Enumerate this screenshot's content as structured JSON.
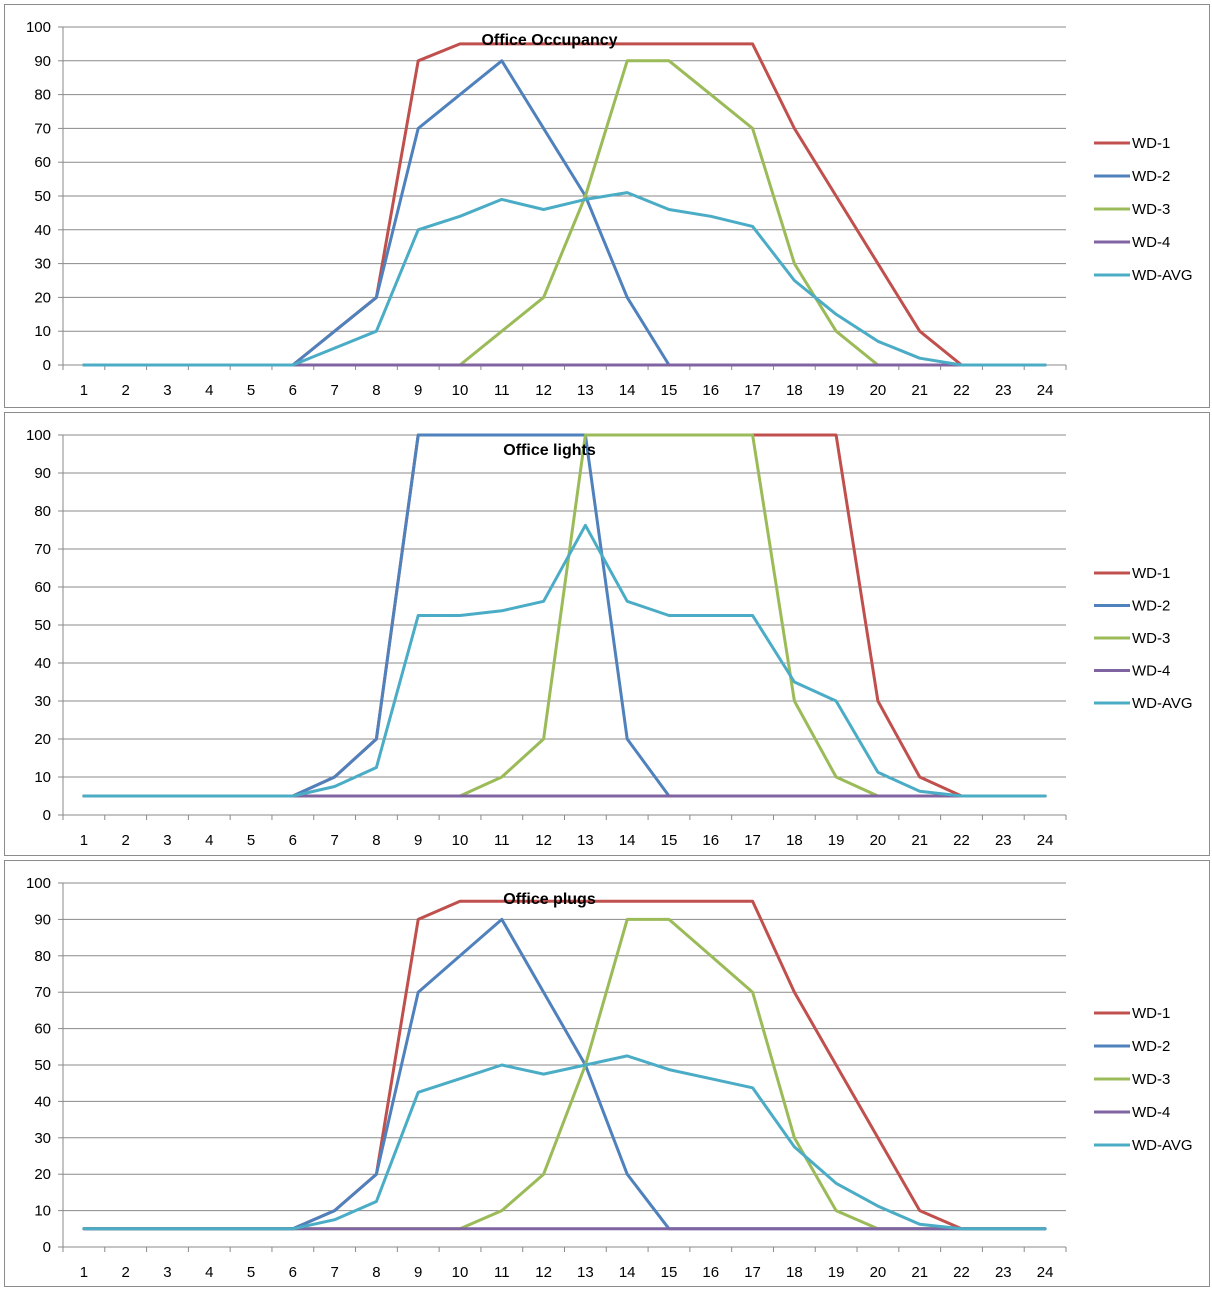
{
  "colors": {
    "WD-1": "#c0504d",
    "WD-2": "#4f81bd",
    "WD-3": "#9bbb59",
    "WD-4": "#8064a2",
    "WD-AVG": "#4bacc6"
  },
  "chart_data": [
    {
      "type": "line",
      "title": "Office Occupancy",
      "xlabel": "",
      "ylabel": "",
      "x": [
        1,
        2,
        3,
        4,
        5,
        6,
        7,
        8,
        9,
        10,
        11,
        12,
        13,
        14,
        15,
        16,
        17,
        18,
        19,
        20,
        21,
        22,
        23,
        24
      ],
      "y_ticks": [
        0,
        10,
        20,
        30,
        40,
        50,
        60,
        70,
        80,
        90,
        100
      ],
      "ylim": [
        0,
        100
      ],
      "grid": true,
      "legend_position": "right",
      "series": [
        {
          "name": "WD-1",
          "values": [
            0,
            0,
            0,
            0,
            0,
            0,
            10,
            20,
            90,
            95,
            95,
            95,
            95,
            95,
            95,
            95,
            95,
            70,
            50,
            30,
            10,
            0,
            0,
            0
          ]
        },
        {
          "name": "WD-2",
          "values": [
            0,
            0,
            0,
            0,
            0,
            0,
            10,
            20,
            70,
            80,
            90,
            70,
            50,
            20,
            0,
            0,
            0,
            0,
            0,
            0,
            0,
            0,
            0,
            0
          ]
        },
        {
          "name": "WD-3",
          "values": [
            0,
            0,
            0,
            0,
            0,
            0,
            0,
            0,
            0,
            0,
            10,
            20,
            50,
            90,
            90,
            80,
            70,
            30,
            10,
            0,
            0,
            0,
            0,
            0
          ]
        },
        {
          "name": "WD-4",
          "values": [
            0,
            0,
            0,
            0,
            0,
            0,
            0,
            0,
            0,
            0,
            0,
            0,
            0,
            0,
            0,
            0,
            0,
            0,
            0,
            0,
            0,
            0,
            0,
            0
          ]
        },
        {
          "name": "WD-AVG",
          "values": [
            0,
            0,
            0,
            0,
            0,
            0,
            5,
            10,
            40,
            44,
            49,
            46,
            49,
            51,
            46,
            44,
            41,
            25,
            15,
            7,
            2,
            0,
            0,
            0
          ]
        }
      ]
    },
    {
      "type": "line",
      "title": "Office lights",
      "xlabel": "",
      "ylabel": "",
      "x": [
        1,
        2,
        3,
        4,
        5,
        6,
        7,
        8,
        9,
        10,
        11,
        12,
        13,
        14,
        15,
        16,
        17,
        18,
        19,
        20,
        21,
        22,
        23,
        24
      ],
      "y_ticks": [
        0,
        10,
        20,
        30,
        40,
        50,
        60,
        70,
        80,
        90,
        100
      ],
      "ylim": [
        0,
        100
      ],
      "grid": true,
      "legend_position": "right",
      "series": [
        {
          "name": "WD-1",
          "values": [
            5,
            5,
            5,
            5,
            5,
            5,
            10,
            20,
            100,
            100,
            100,
            100,
            100,
            100,
            100,
            100,
            100,
            100,
            100,
            30,
            10,
            5,
            5,
            5
          ]
        },
        {
          "name": "WD-2",
          "values": [
            5,
            5,
            5,
            5,
            5,
            5,
            10,
            20,
            100,
            100,
            100,
            100,
            100,
            20,
            5,
            5,
            5,
            5,
            5,
            5,
            5,
            5,
            5,
            5
          ]
        },
        {
          "name": "WD-3",
          "values": [
            5,
            5,
            5,
            5,
            5,
            5,
            5,
            5,
            5,
            5,
            10,
            20,
            100,
            100,
            100,
            100,
            100,
            30,
            10,
            5,
            5,
            5,
            5,
            5
          ]
        },
        {
          "name": "WD-4",
          "values": [
            5,
            5,
            5,
            5,
            5,
            5,
            5,
            5,
            5,
            5,
            5,
            5,
            5,
            5,
            5,
            5,
            5,
            5,
            5,
            5,
            5,
            5,
            5,
            5
          ]
        },
        {
          "name": "WD-AVG",
          "values": [
            5,
            5,
            5,
            5,
            5,
            5,
            7.5,
            12.5,
            52.5,
            52.5,
            53.75,
            56.25,
            76.25,
            56.25,
            52.5,
            52.5,
            52.5,
            35,
            30,
            11.25,
            6.25,
            5,
            5,
            5
          ]
        }
      ]
    },
    {
      "type": "line",
      "title": "Office plugs",
      "xlabel": "",
      "ylabel": "",
      "x": [
        1,
        2,
        3,
        4,
        5,
        6,
        7,
        8,
        9,
        10,
        11,
        12,
        13,
        14,
        15,
        16,
        17,
        18,
        19,
        20,
        21,
        22,
        23,
        24
      ],
      "y_ticks": [
        0,
        10,
        20,
        30,
        40,
        50,
        60,
        70,
        80,
        90,
        100
      ],
      "ylim": [
        0,
        100
      ],
      "grid": true,
      "legend_position": "right",
      "series": [
        {
          "name": "WD-1",
          "values": [
            5,
            5,
            5,
            5,
            5,
            5,
            10,
            20,
            90,
            95,
            95,
            95,
            95,
            95,
            95,
            95,
            95,
            70,
            50,
            30,
            10,
            5,
            5,
            5
          ]
        },
        {
          "name": "WD-2",
          "values": [
            5,
            5,
            5,
            5,
            5,
            5,
            10,
            20,
            70,
            80,
            90,
            70,
            50,
            20,
            5,
            5,
            5,
            5,
            5,
            5,
            5,
            5,
            5,
            5
          ]
        },
        {
          "name": "WD-3",
          "values": [
            5,
            5,
            5,
            5,
            5,
            5,
            5,
            5,
            5,
            5,
            10,
            20,
            50,
            90,
            90,
            80,
            70,
            30,
            10,
            5,
            5,
            5,
            5,
            5
          ]
        },
        {
          "name": "WD-4",
          "values": [
            5,
            5,
            5,
            5,
            5,
            5,
            5,
            5,
            5,
            5,
            5,
            5,
            5,
            5,
            5,
            5,
            5,
            5,
            5,
            5,
            5,
            5,
            5,
            5
          ]
        },
        {
          "name": "WD-AVG",
          "values": [
            5,
            5,
            5,
            5,
            5,
            5,
            7.5,
            12.5,
            42.5,
            46.25,
            50,
            47.5,
            50,
            52.5,
            48.75,
            46.25,
            43.75,
            27.5,
            17.5,
            11.25,
            6.25,
            5,
            5,
            5
          ]
        }
      ]
    }
  ]
}
